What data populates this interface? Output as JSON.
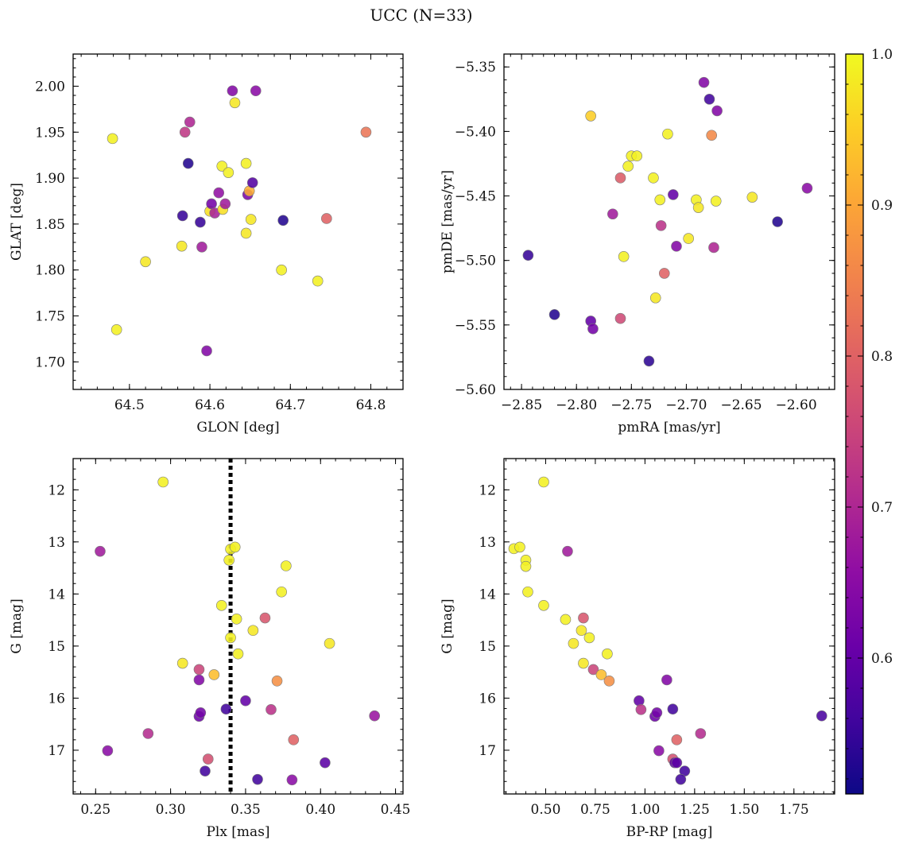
{
  "figure": {
    "suptitle": "UCC (N=33)",
    "colorbar": {
      "min": 0.51,
      "max": 1.0,
      "ticks": [
        0.6,
        0.7,
        0.8,
        0.9,
        1.0
      ],
      "tick_labels": [
        "0.6",
        "0.7",
        "0.8",
        "0.9",
        "1.0"
      ],
      "colormap": "plasma"
    }
  },
  "chart_data": [
    {
      "type": "scatter",
      "xlabel": "GLON [deg]",
      "ylabel": "GLAT [deg]",
      "xlim": [
        64.43,
        64.84
      ],
      "ylim": [
        1.67,
        2.035
      ],
      "xticks": [
        64.5,
        64.6,
        64.7,
        64.8
      ],
      "xtick_labels": [
        "64.5",
        "64.6",
        "64.7",
        "64.8"
      ],
      "yticks": [
        1.7,
        1.75,
        1.8,
        1.85,
        1.9,
        1.95,
        2.0
      ],
      "ytick_labels": [
        "1.70",
        "1.75",
        "1.80",
        "1.85",
        "1.90",
        "1.95",
        "2.00"
      ],
      "points": [
        {
          "x": 64.479,
          "y": 1.943,
          "c": 0.99
        },
        {
          "x": 64.484,
          "y": 1.735,
          "c": 0.99
        },
        {
          "x": 64.52,
          "y": 1.809,
          "c": 0.98
        },
        {
          "x": 64.565,
          "y": 1.826,
          "c": 0.98
        },
        {
          "x": 64.566,
          "y": 1.859,
          "c": 0.55
        },
        {
          "x": 64.569,
          "y": 1.95,
          "c": 0.73
        },
        {
          "x": 64.573,
          "y": 1.916,
          "c": 0.53
        },
        {
          "x": 64.575,
          "y": 1.961,
          "c": 0.7
        },
        {
          "x": 64.588,
          "y": 1.852,
          "c": 0.55
        },
        {
          "x": 64.59,
          "y": 1.825,
          "c": 0.68
        },
        {
          "x": 64.596,
          "y": 1.712,
          "c": 0.64
        },
        {
          "x": 64.6,
          "y": 1.864,
          "c": 0.97
        },
        {
          "x": 64.602,
          "y": 1.872,
          "c": 0.62
        },
        {
          "x": 64.606,
          "y": 1.862,
          "c": 0.69
        },
        {
          "x": 64.611,
          "y": 1.884,
          "c": 0.66
        },
        {
          "x": 64.615,
          "y": 1.913,
          "c": 0.99
        },
        {
          "x": 64.616,
          "y": 1.866,
          "c": 0.97
        },
        {
          "x": 64.619,
          "y": 1.872,
          "c": 0.68
        },
        {
          "x": 64.623,
          "y": 1.906,
          "c": 0.99
        },
        {
          "x": 64.628,
          "y": 1.995,
          "c": 0.64
        },
        {
          "x": 64.631,
          "y": 1.982,
          "c": 0.98
        },
        {
          "x": 64.645,
          "y": 1.84,
          "c": 0.98
        },
        {
          "x": 64.645,
          "y": 1.916,
          "c": 0.99
        },
        {
          "x": 64.647,
          "y": 1.882,
          "c": 0.63
        },
        {
          "x": 64.649,
          "y": 1.886,
          "c": 0.91
        },
        {
          "x": 64.651,
          "y": 1.855,
          "c": 0.98
        },
        {
          "x": 64.653,
          "y": 1.895,
          "c": 0.58
        },
        {
          "x": 64.657,
          "y": 1.995,
          "c": 0.65
        },
        {
          "x": 64.689,
          "y": 1.8,
          "c": 0.99
        },
        {
          "x": 64.691,
          "y": 1.854,
          "c": 0.53
        },
        {
          "x": 64.734,
          "y": 1.788,
          "c": 0.99
        },
        {
          "x": 64.745,
          "y": 1.856,
          "c": 0.8
        },
        {
          "x": 64.794,
          "y": 1.95,
          "c": 0.83
        }
      ]
    },
    {
      "type": "scatter",
      "xlabel": "pmRA [mas/yr]",
      "ylabel": "pmDE [mas/yr]",
      "xlim": [
        -2.866,
        -2.565
      ],
      "ylim": [
        -5.6,
        -5.34
      ],
      "xticks": [
        -2.85,
        -2.8,
        -2.75,
        -2.7,
        -2.65,
        -2.6
      ],
      "xtick_labels": [
        "−2.85",
        "−2.80",
        "−2.75",
        "−2.70",
        "−2.65",
        "−2.60"
      ],
      "yticks": [
        -5.6,
        -5.55,
        -5.5,
        -5.45,
        -5.4,
        -5.35
      ],
      "ytick_labels": [
        "−5.60",
        "−5.55",
        "−5.50",
        "−5.45",
        "−5.40",
        "−5.35"
      ],
      "points": [
        {
          "x": -2.844,
          "y": -5.496,
          "c": 0.55
        },
        {
          "x": -2.82,
          "y": -5.542,
          "c": 0.53
        },
        {
          "x": -2.787,
          "y": -5.388,
          "c": 0.95
        },
        {
          "x": -2.787,
          "y": -5.547,
          "c": 0.6
        },
        {
          "x": -2.785,
          "y": -5.553,
          "c": 0.62
        },
        {
          "x": -2.767,
          "y": -5.464,
          "c": 0.68
        },
        {
          "x": -2.76,
          "y": -5.436,
          "c": 0.79
        },
        {
          "x": -2.76,
          "y": -5.545,
          "c": 0.76
        },
        {
          "x": -2.757,
          "y": -5.497,
          "c": 0.99
        },
        {
          "x": -2.753,
          "y": -5.427,
          "c": 0.99
        },
        {
          "x": -2.75,
          "y": -5.419,
          "c": 0.99
        },
        {
          "x": -2.745,
          "y": -5.419,
          "c": 0.99
        },
        {
          "x": -2.734,
          "y": -5.578,
          "c": 0.54
        },
        {
          "x": -2.73,
          "y": -5.436,
          "c": 0.99
        },
        {
          "x": -2.728,
          "y": -5.529,
          "c": 0.98
        },
        {
          "x": -2.724,
          "y": -5.453,
          "c": 0.99
        },
        {
          "x": -2.723,
          "y": -5.473,
          "c": 0.72
        },
        {
          "x": -2.72,
          "y": -5.51,
          "c": 0.8
        },
        {
          "x": -2.717,
          "y": -5.402,
          "c": 0.99
        },
        {
          "x": -2.712,
          "y": -5.449,
          "c": 0.6
        },
        {
          "x": -2.709,
          "y": -5.489,
          "c": 0.64
        },
        {
          "x": -2.698,
          "y": -5.483,
          "c": 0.98
        },
        {
          "x": -2.691,
          "y": -5.453,
          "c": 0.99
        },
        {
          "x": -2.689,
          "y": -5.459,
          "c": 0.98
        },
        {
          "x": -2.684,
          "y": -5.362,
          "c": 0.64
        },
        {
          "x": -2.679,
          "y": -5.375,
          "c": 0.56
        },
        {
          "x": -2.677,
          "y": -5.403,
          "c": 0.86
        },
        {
          "x": -2.675,
          "y": -5.49,
          "c": 0.7
        },
        {
          "x": -2.673,
          "y": -5.454,
          "c": 0.99
        },
        {
          "x": -2.672,
          "y": -5.384,
          "c": 0.64
        },
        {
          "x": -2.64,
          "y": -5.451,
          "c": 0.98
        },
        {
          "x": -2.617,
          "y": -5.47,
          "c": 0.53
        },
        {
          "x": -2.59,
          "y": -5.444,
          "c": 0.65
        }
      ]
    },
    {
      "type": "scatter",
      "xlabel": "Plx [mas]",
      "ylabel": "G [mag]",
      "xlim": [
        0.235,
        0.455
      ],
      "ylim": [
        17.84,
        11.4
      ],
      "y_inverted": true,
      "xticks": [
        0.25,
        0.3,
        0.35,
        0.4,
        0.45
      ],
      "xtick_labels": [
        "0.25",
        "0.30",
        "0.35",
        "0.40",
        "0.45"
      ],
      "yticks": [
        12,
        13,
        14,
        15,
        16,
        17
      ],
      "ytick_labels": [
        "12",
        "13",
        "14",
        "15",
        "16",
        "17"
      ],
      "vline": {
        "x": 0.34,
        "style": "dotted",
        "color": "#000000"
      },
      "points": [
        {
          "x": 0.253,
          "y": 13.18,
          "c": 0.68
        },
        {
          "x": 0.258,
          "y": 17.01,
          "c": 0.65
        },
        {
          "x": 0.285,
          "y": 16.68,
          "c": 0.71
        },
        {
          "x": 0.295,
          "y": 11.85,
          "c": 0.99
        },
        {
          "x": 0.308,
          "y": 15.33,
          "c": 0.98
        },
        {
          "x": 0.319,
          "y": 15.45,
          "c": 0.75
        },
        {
          "x": 0.319,
          "y": 15.65,
          "c": 0.64
        },
        {
          "x": 0.319,
          "y": 16.35,
          "c": 0.61
        },
        {
          "x": 0.32,
          "y": 16.28,
          "c": 0.62
        },
        {
          "x": 0.323,
          "y": 17.4,
          "c": 0.56
        },
        {
          "x": 0.325,
          "y": 17.17,
          "c": 0.77
        },
        {
          "x": 0.329,
          "y": 15.55,
          "c": 0.93
        },
        {
          "x": 0.334,
          "y": 14.22,
          "c": 0.99
        },
        {
          "x": 0.337,
          "y": 16.21,
          "c": 0.56
        },
        {
          "x": 0.339,
          "y": 13.35,
          "c": 0.99
        },
        {
          "x": 0.34,
          "y": 13.14,
          "c": 0.99
        },
        {
          "x": 0.34,
          "y": 14.84,
          "c": 0.99
        },
        {
          "x": 0.343,
          "y": 13.1,
          "c": 0.99
        },
        {
          "x": 0.344,
          "y": 14.48,
          "c": 0.99
        },
        {
          "x": 0.345,
          "y": 15.15,
          "c": 0.99
        },
        {
          "x": 0.35,
          "y": 16.05,
          "c": 0.6
        },
        {
          "x": 0.355,
          "y": 14.7,
          "c": 0.98
        },
        {
          "x": 0.358,
          "y": 17.56,
          "c": 0.56
        },
        {
          "x": 0.363,
          "y": 14.46,
          "c": 0.78
        },
        {
          "x": 0.367,
          "y": 16.22,
          "c": 0.72
        },
        {
          "x": 0.371,
          "y": 15.67,
          "c": 0.87
        },
        {
          "x": 0.374,
          "y": 13.96,
          "c": 0.99
        },
        {
          "x": 0.377,
          "y": 13.46,
          "c": 0.99
        },
        {
          "x": 0.381,
          "y": 17.57,
          "c": 0.65
        },
        {
          "x": 0.382,
          "y": 16.8,
          "c": 0.8
        },
        {
          "x": 0.403,
          "y": 17.24,
          "c": 0.59
        },
        {
          "x": 0.406,
          "y": 14.95,
          "c": 0.98
        },
        {
          "x": 0.436,
          "y": 16.34,
          "c": 0.67
        }
      ]
    },
    {
      "type": "scatter",
      "xlabel": "BP-RP [mag]",
      "ylabel": "G [mag]",
      "xlim": [
        0.29,
        1.955
      ],
      "ylim": [
        17.84,
        11.4
      ],
      "y_inverted": true,
      "xticks": [
        0.5,
        0.75,
        1.0,
        1.25,
        1.5,
        1.75
      ],
      "xtick_labels": [
        "0.50",
        "0.75",
        "1.00",
        "1.25",
        "1.50",
        "1.75"
      ],
      "yticks": [
        12,
        13,
        14,
        15,
        16,
        17
      ],
      "ytick_labels": [
        "12",
        "13",
        "14",
        "15",
        "16",
        "17"
      ],
      "points": [
        {
          "x": 0.49,
          "y": 11.85,
          "c": 0.99
        },
        {
          "x": 0.34,
          "y": 13.13,
          "c": 0.99
        },
        {
          "x": 0.37,
          "y": 13.1,
          "c": 0.99
        },
        {
          "x": 0.4,
          "y": 13.35,
          "c": 0.99
        },
        {
          "x": 0.4,
          "y": 13.47,
          "c": 0.99
        },
        {
          "x": 0.41,
          "y": 13.96,
          "c": 0.99
        },
        {
          "x": 0.61,
          "y": 13.18,
          "c": 0.68
        },
        {
          "x": 0.49,
          "y": 14.22,
          "c": 0.99
        },
        {
          "x": 0.6,
          "y": 14.49,
          "c": 0.99
        },
        {
          "x": 0.69,
          "y": 14.46,
          "c": 0.78
        },
        {
          "x": 0.68,
          "y": 14.7,
          "c": 0.98
        },
        {
          "x": 0.64,
          "y": 14.95,
          "c": 0.98
        },
        {
          "x": 0.72,
          "y": 14.84,
          "c": 0.99
        },
        {
          "x": 0.81,
          "y": 15.15,
          "c": 0.99
        },
        {
          "x": 0.69,
          "y": 15.33,
          "c": 0.98
        },
        {
          "x": 0.74,
          "y": 15.45,
          "c": 0.75
        },
        {
          "x": 0.78,
          "y": 15.55,
          "c": 0.93
        },
        {
          "x": 0.82,
          "y": 15.67,
          "c": 0.87
        },
        {
          "x": 1.11,
          "y": 15.65,
          "c": 0.64
        },
        {
          "x": 0.97,
          "y": 16.05,
          "c": 0.6
        },
        {
          "x": 0.98,
          "y": 16.22,
          "c": 0.72
        },
        {
          "x": 1.14,
          "y": 16.21,
          "c": 0.56
        },
        {
          "x": 1.05,
          "y": 16.35,
          "c": 0.61
        },
        {
          "x": 1.06,
          "y": 16.28,
          "c": 0.62
        },
        {
          "x": 1.89,
          "y": 16.34,
          "c": 0.57
        },
        {
          "x": 1.28,
          "y": 16.68,
          "c": 0.71
        },
        {
          "x": 1.16,
          "y": 16.8,
          "c": 0.8
        },
        {
          "x": 1.07,
          "y": 17.01,
          "c": 0.65
        },
        {
          "x": 1.14,
          "y": 17.17,
          "c": 0.77
        },
        {
          "x": 1.15,
          "y": 17.24,
          "c": 0.59
        },
        {
          "x": 1.2,
          "y": 17.4,
          "c": 0.56
        },
        {
          "x": 1.18,
          "y": 17.56,
          "c": 0.56
        },
        {
          "x": 1.16,
          "y": 17.24,
          "c": 0.59
        }
      ]
    }
  ]
}
